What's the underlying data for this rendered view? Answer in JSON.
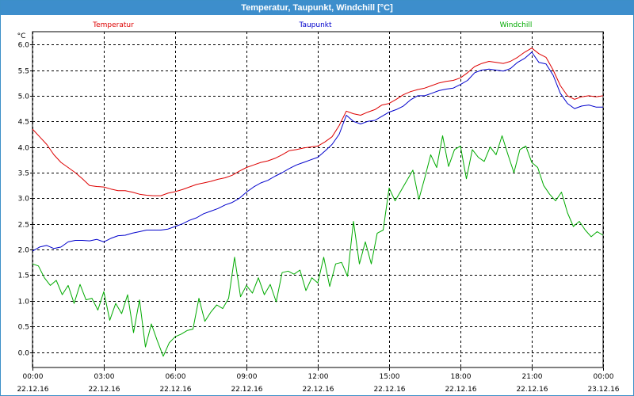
{
  "window": {
    "title": "Temperatur, Taupunkt, Windchill [°C]"
  },
  "chart_data": {
    "type": "line",
    "title": "Temperatur, Taupunkt, Windchill [°C]",
    "ylabel": "°C",
    "xlabel": "",
    "ylim": [
      -0.3,
      6.25
    ],
    "xlim": [
      0,
      24
    ],
    "grid": true,
    "legend_position": "top",
    "yticks": [
      0.0,
      0.5,
      1.0,
      1.5,
      2.0,
      2.5,
      3.0,
      3.5,
      4.0,
      4.5,
      5.0,
      5.5,
      6.0
    ],
    "ytick_labels": [
      "0.0",
      "0.5",
      "1.0",
      "1.5",
      "2.0",
      "2.5",
      "3.0",
      "3.5",
      "4.0",
      "4.5",
      "5.0",
      "5.5",
      "6.0"
    ],
    "xticks": [
      0,
      3,
      6,
      9,
      12,
      15,
      18,
      21,
      24
    ],
    "xtick_labels": [
      {
        "time": "00:00",
        "date": "22.12.16"
      },
      {
        "time": "03:00",
        "date": "22.12.16"
      },
      {
        "time": "06:00",
        "date": "22.12.16"
      },
      {
        "time": "09:00",
        "date": "22.12.16"
      },
      {
        "time": "12:00",
        "date": "22.12.16"
      },
      {
        "time": "15:00",
        "date": "22.12.16"
      },
      {
        "time": "18:00",
        "date": "22.12.16"
      },
      {
        "time": "21:00",
        "date": "22.12.16"
      },
      {
        "time": "00:00",
        "date": "23.12.16"
      }
    ],
    "series": [
      {
        "name": "Temperatur",
        "color": "#dd0000",
        "x": [
          0,
          0.3,
          0.6,
          0.9,
          1.2,
          1.5,
          1.8,
          2.1,
          2.4,
          2.7,
          3.0,
          3.3,
          3.6,
          3.9,
          4.2,
          4.5,
          4.8,
          5.1,
          5.4,
          5.7,
          6.0,
          6.3,
          6.6,
          6.9,
          7.2,
          7.5,
          7.8,
          8.1,
          8.4,
          8.7,
          9.0,
          9.3,
          9.6,
          9.9,
          10.2,
          10.5,
          10.8,
          11.1,
          11.4,
          11.7,
          12.0,
          12.3,
          12.6,
          12.9,
          13.2,
          13.5,
          13.8,
          14.1,
          14.4,
          14.7,
          15.0,
          15.3,
          15.6,
          15.9,
          16.2,
          16.5,
          16.8,
          17.1,
          17.4,
          17.7,
          18.0,
          18.3,
          18.6,
          18.9,
          19.2,
          19.5,
          19.8,
          20.1,
          20.4,
          20.7,
          21.0,
          21.3,
          21.6,
          21.9,
          22.2,
          22.5,
          22.8,
          23.1,
          23.4,
          23.7,
          24.0
        ],
        "values": [
          4.35,
          4.2,
          4.05,
          3.85,
          3.7,
          3.6,
          3.5,
          3.38,
          3.25,
          3.23,
          3.22,
          3.18,
          3.15,
          3.15,
          3.12,
          3.08,
          3.06,
          3.05,
          3.05,
          3.1,
          3.13,
          3.17,
          3.22,
          3.27,
          3.3,
          3.33,
          3.37,
          3.4,
          3.45,
          3.53,
          3.6,
          3.65,
          3.7,
          3.73,
          3.78,
          3.85,
          3.93,
          3.95,
          3.98,
          4.0,
          4.02,
          4.1,
          4.2,
          4.42,
          4.7,
          4.65,
          4.62,
          4.68,
          4.73,
          4.82,
          4.85,
          4.93,
          5.02,
          5.08,
          5.12,
          5.15,
          5.2,
          5.25,
          5.28,
          5.3,
          5.35,
          5.45,
          5.57,
          5.63,
          5.67,
          5.65,
          5.63,
          5.67,
          5.75,
          5.85,
          5.93,
          5.82,
          5.75,
          5.5,
          5.2,
          5.0,
          4.93,
          4.98,
          5.0,
          4.98,
          5.0
        ]
      },
      {
        "name": "Taupunkt",
        "color": "#0000cc",
        "x": [
          0,
          0.3,
          0.6,
          0.9,
          1.2,
          1.5,
          1.8,
          2.1,
          2.4,
          2.7,
          3.0,
          3.3,
          3.6,
          3.9,
          4.2,
          4.5,
          4.8,
          5.1,
          5.4,
          5.7,
          6.0,
          6.3,
          6.6,
          6.9,
          7.2,
          7.5,
          7.8,
          8.1,
          8.4,
          8.7,
          9.0,
          9.3,
          9.6,
          9.9,
          10.2,
          10.5,
          10.8,
          11.1,
          11.4,
          11.7,
          12.0,
          12.3,
          12.6,
          12.9,
          13.2,
          13.5,
          13.8,
          14.1,
          14.4,
          14.7,
          15.0,
          15.3,
          15.6,
          15.9,
          16.2,
          16.5,
          16.8,
          17.1,
          17.4,
          17.7,
          18.0,
          18.3,
          18.6,
          18.9,
          19.2,
          19.5,
          19.8,
          20.1,
          20.4,
          20.7,
          21.0,
          21.3,
          21.6,
          21.9,
          22.2,
          22.5,
          22.8,
          23.1,
          23.4,
          23.7,
          24.0
        ],
        "values": [
          1.97,
          2.05,
          2.08,
          2.02,
          2.05,
          2.15,
          2.18,
          2.18,
          2.17,
          2.2,
          2.15,
          2.22,
          2.27,
          2.28,
          2.32,
          2.35,
          2.38,
          2.38,
          2.38,
          2.4,
          2.45,
          2.5,
          2.57,
          2.62,
          2.7,
          2.75,
          2.8,
          2.87,
          2.92,
          3.0,
          3.12,
          3.22,
          3.3,
          3.35,
          3.43,
          3.5,
          3.58,
          3.65,
          3.7,
          3.75,
          3.8,
          3.92,
          4.05,
          4.25,
          4.62,
          4.5,
          4.45,
          4.5,
          4.52,
          4.6,
          4.68,
          4.73,
          4.8,
          4.92,
          5.0,
          5.0,
          5.05,
          5.1,
          5.13,
          5.15,
          5.22,
          5.3,
          5.45,
          5.5,
          5.52,
          5.5,
          5.48,
          5.53,
          5.65,
          5.73,
          5.85,
          5.65,
          5.62,
          5.4,
          5.05,
          4.85,
          4.75,
          4.8,
          4.82,
          4.78,
          4.78
        ]
      },
      {
        "name": "Windchill",
        "color": "#00aa00",
        "x": [
          0,
          0.25,
          0.5,
          0.75,
          1.0,
          1.25,
          1.5,
          1.75,
          2.0,
          2.25,
          2.5,
          2.75,
          3.0,
          3.25,
          3.5,
          3.75,
          4.0,
          4.25,
          4.5,
          4.75,
          5.0,
          5.25,
          5.5,
          5.75,
          6.0,
          6.25,
          6.5,
          6.75,
          7.0,
          7.25,
          7.5,
          7.75,
          8.0,
          8.25,
          8.5,
          8.75,
          9.0,
          9.25,
          9.5,
          9.75,
          10.0,
          10.25,
          10.5,
          10.75,
          11.0,
          11.25,
          11.5,
          11.75,
          12.0,
          12.25,
          12.5,
          12.75,
          13.0,
          13.25,
          13.5,
          13.75,
          14.0,
          14.25,
          14.5,
          14.75,
          15.0,
          15.25,
          15.5,
          15.75,
          16.0,
          16.25,
          16.5,
          16.75,
          17.0,
          17.25,
          17.5,
          17.75,
          18.0,
          18.25,
          18.5,
          18.75,
          19.0,
          19.25,
          19.5,
          19.75,
          20.0,
          20.25,
          20.5,
          20.75,
          21.0,
          21.25,
          21.5,
          21.75,
          22.0,
          22.25,
          22.5,
          22.75,
          23.0,
          23.25,
          23.5,
          23.75,
          24.0
        ],
        "values": [
          1.72,
          1.68,
          1.45,
          1.3,
          1.4,
          1.12,
          1.3,
          0.95,
          1.32,
          1.02,
          1.05,
          0.82,
          1.18,
          0.62,
          0.95,
          0.75,
          1.12,
          0.38,
          1.02,
          0.1,
          0.55,
          0.22,
          -0.08,
          0.18,
          0.3,
          0.35,
          0.42,
          0.45,
          1.05,
          0.6,
          0.78,
          0.92,
          0.85,
          1.05,
          1.85,
          1.08,
          1.3,
          1.15,
          1.45,
          1.12,
          1.32,
          0.98,
          1.55,
          1.58,
          1.52,
          1.6,
          1.2,
          1.45,
          1.35,
          1.85,
          1.28,
          1.72,
          1.75,
          1.48,
          2.55,
          1.72,
          2.15,
          1.72,
          2.32,
          2.38,
          3.2,
          2.95,
          3.15,
          3.35,
          3.55,
          2.98,
          3.4,
          3.85,
          3.6,
          4.22,
          3.62,
          3.95,
          4.02,
          3.38,
          3.95,
          3.8,
          3.72,
          4.0,
          3.85,
          4.22,
          3.85,
          3.5,
          3.95,
          4.02,
          3.7,
          3.6,
          3.25,
          3.08,
          2.95,
          3.12,
          2.72,
          2.45,
          2.55,
          2.38,
          2.25,
          2.35,
          2.28
        ]
      }
    ]
  }
}
